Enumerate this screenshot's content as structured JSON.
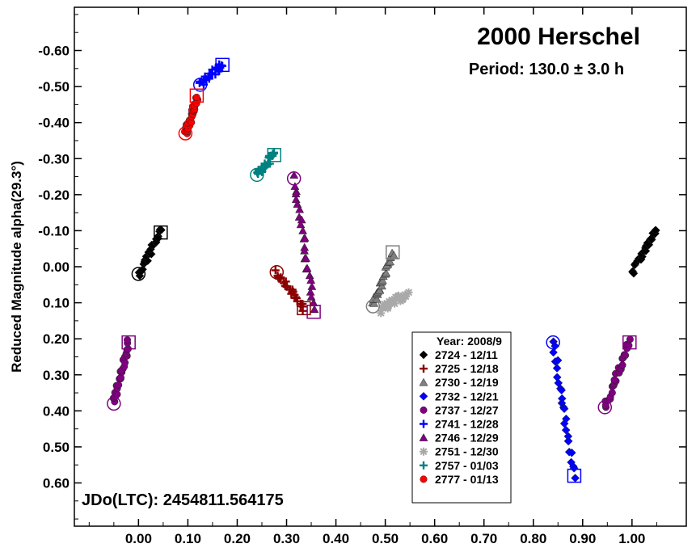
{
  "chart_data": {
    "type": "scatter",
    "title": "2000 Herschel",
    "subtitle": "Period: 130.0 ± 3.0 h",
    "ylabel": "Reduced Magnitude alpha(29.3°)",
    "xlabel": "",
    "x_ticks": [
      "0.00",
      "0.10",
      "0.20",
      "0.30",
      "0.40",
      "0.50",
      "0.60",
      "0.70",
      "0.80",
      "0.90",
      "1.00"
    ],
    "y_ticks": [
      "-0.60",
      "-0.50",
      "-0.40",
      "-0.30",
      "-0.20",
      "-0.10",
      "0.00",
      "0.10",
      "0.20",
      "0.30",
      "0.40",
      "0.50",
      "0.60"
    ],
    "xlim": [
      -0.13,
      1.11
    ],
    "ylim": [
      0.72,
      -0.72
    ],
    "y_inverted": true,
    "annotation": "JDo(LTC): 2454811.564175",
    "legend_title": "Year: 2008/9",
    "legend_placement": "bottom-center",
    "series": [
      {
        "name": "2724 - 12/11",
        "color": "#000000",
        "marker": "diamond",
        "segments": [
          [
            0.0,
            0.02,
            0.045,
            -0.1
          ],
          [
            1.0,
            0.02,
            1.05,
            -0.11
          ]
        ]
      },
      {
        "name": "2725 - 12/18",
        "color": "#8b0000",
        "marker": "plus",
        "segments": [
          [
            0.28,
            0.015,
            0.335,
            0.115
          ]
        ]
      },
      {
        "name": "2730 - 12/19",
        "color": "#808080",
        "marker": "triangle",
        "segments": [
          [
            0.475,
            0.11,
            0.515,
            -0.04
          ]
        ]
      },
      {
        "name": "2732 - 12/21",
        "color": "#0000ff",
        "marker": "diamond",
        "segments": [
          [
            0.84,
            0.21,
            0.883,
            0.58
          ]
        ]
      },
      {
        "name": "2737 - 12/27",
        "color": "#800080",
        "marker": "circle",
        "segments": [
          [
            -0.05,
            0.38,
            -0.02,
            0.21
          ],
          [
            0.945,
            0.39,
            0.995,
            0.21
          ]
        ]
      },
      {
        "name": "2741 - 12/28",
        "color": "#0000ff",
        "marker": "plus",
        "segments": [
          [
            0.125,
            -0.505,
            0.17,
            -0.56
          ]
        ]
      },
      {
        "name": "2746 - 12/29",
        "color": "#800080",
        "marker": "triangle",
        "segments": [
          [
            0.315,
            -0.245,
            0.355,
            0.115
          ]
        ]
      },
      {
        "name": "2751 - 12/30",
        "color": "#a9a9a9",
        "marker": "star",
        "segments": [
          [
            0.49,
            0.12,
            0.545,
            0.075
          ]
        ]
      },
      {
        "name": "2757 - 01/03",
        "color": "#008080",
        "marker": "plus",
        "segments": [
          [
            0.24,
            -0.255,
            0.275,
            -0.315
          ]
        ]
      },
      {
        "name": "2777 - 01/13",
        "color": "#ff0000",
        "marker": "circle",
        "segments": [
          [
            0.095,
            -0.37,
            0.118,
            -0.47
          ]
        ]
      }
    ],
    "start_end_markers": {
      "series": [
        {
          "color": "#000000",
          "start": [
            0.0,
            0.02
          ],
          "end": [
            0.045,
            -0.095
          ]
        },
        {
          "color": "#8b0000",
          "start": [
            0.28,
            0.015
          ],
          "end": [
            0.335,
            0.115
          ]
        },
        {
          "color": "#808080",
          "start": [
            0.475,
            0.11
          ],
          "end": [
            0.515,
            -0.04
          ]
        },
        {
          "color": "#0000ff",
          "start": [
            0.84,
            0.21
          ],
          "end": [
            0.883,
            0.58
          ]
        },
        {
          "color": "#800080",
          "start": [
            -0.05,
            0.38
          ],
          "end": [
            -0.02,
            0.21
          ]
        },
        {
          "color": "#800080",
          "start": [
            0.945,
            0.39
          ],
          "end": [
            0.995,
            0.21
          ]
        },
        {
          "color": "#0000ff",
          "start": [
            0.125,
            -0.505
          ],
          "end": [
            0.17,
            -0.56
          ]
        },
        {
          "color": "#800080",
          "start": [
            0.315,
            -0.245
          ],
          "end": [
            0.355,
            0.125
          ]
        },
        {
          "color": "#008080",
          "start": [
            0.24,
            -0.255
          ],
          "end": [
            0.275,
            -0.31
          ]
        },
        {
          "color": "#ff0000",
          "start": [
            0.095,
            -0.37
          ],
          "end": [
            0.118,
            -0.475
          ]
        }
      ]
    }
  }
}
